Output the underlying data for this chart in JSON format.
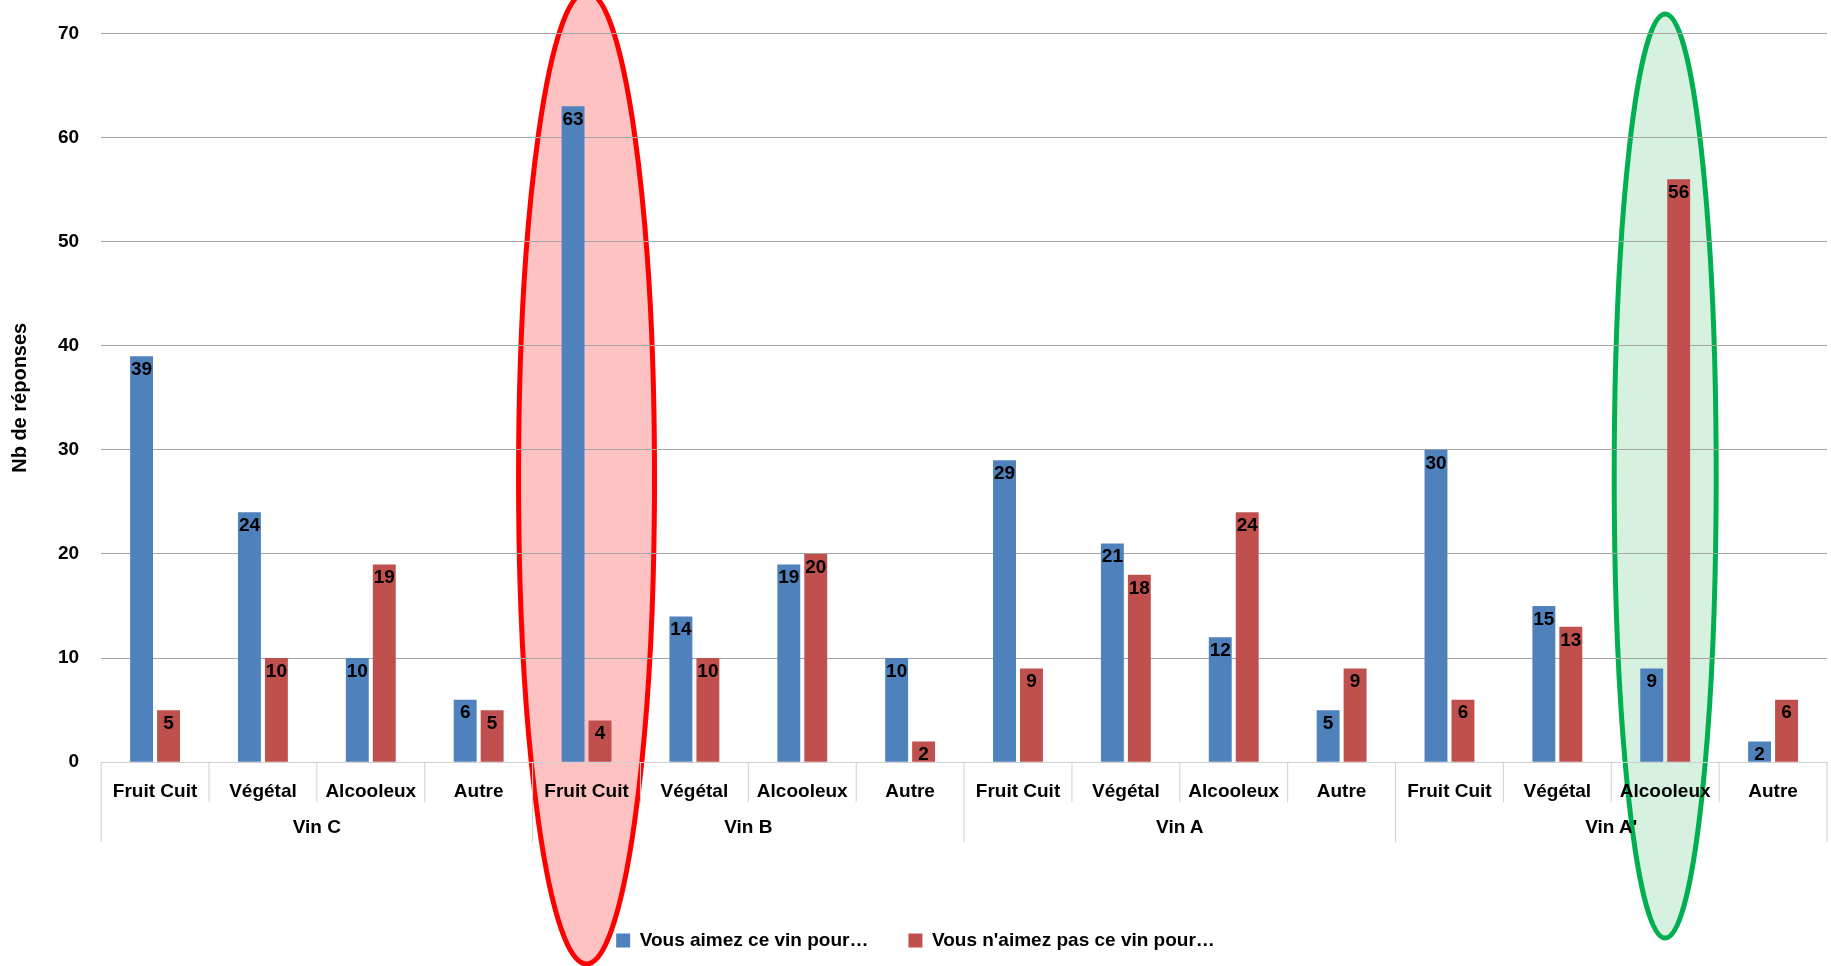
{
  "chart_data": {
    "type": "bar",
    "ylabel": "Nb de réponses",
    "categories": [
      "Fruit Cuit",
      "Végétal",
      "Alcooleux",
      "Autre",
      "Fruit Cuit",
      "Végétal",
      "Alcooleux",
      "Autre",
      "Fruit Cuit",
      "Végétal",
      "Alcooleux",
      "Autre",
      "Fruit Cuit",
      "Végétal",
      "Alcooleux",
      "Autre"
    ],
    "annotations": [
      "Vin C",
      "Vin B",
      "Vin A",
      "Vin A'"
    ],
    "series": [
      {
        "name": "Vous aimez ce vin pour…",
        "color": "#4f81bd",
        "values": [
          39,
          24,
          10,
          6,
          63,
          14,
          19,
          10,
          29,
          21,
          12,
          5,
          30,
          15,
          9,
          2
        ]
      },
      {
        "name": "Vous n'aimez pas ce vin pour…",
        "color": "#c0504d",
        "values": [
          5,
          10,
          19,
          5,
          4,
          10,
          20,
          2,
          9,
          18,
          24,
          9,
          6,
          13,
          56,
          6
        ]
      }
    ],
    "ylim": [
      0,
      70
    ],
    "yticks": [
      0,
      10,
      20,
      30,
      40,
      50,
      60,
      70
    ],
    "grid": "y",
    "legend": "bottom",
    "data_labels": true
  }
}
